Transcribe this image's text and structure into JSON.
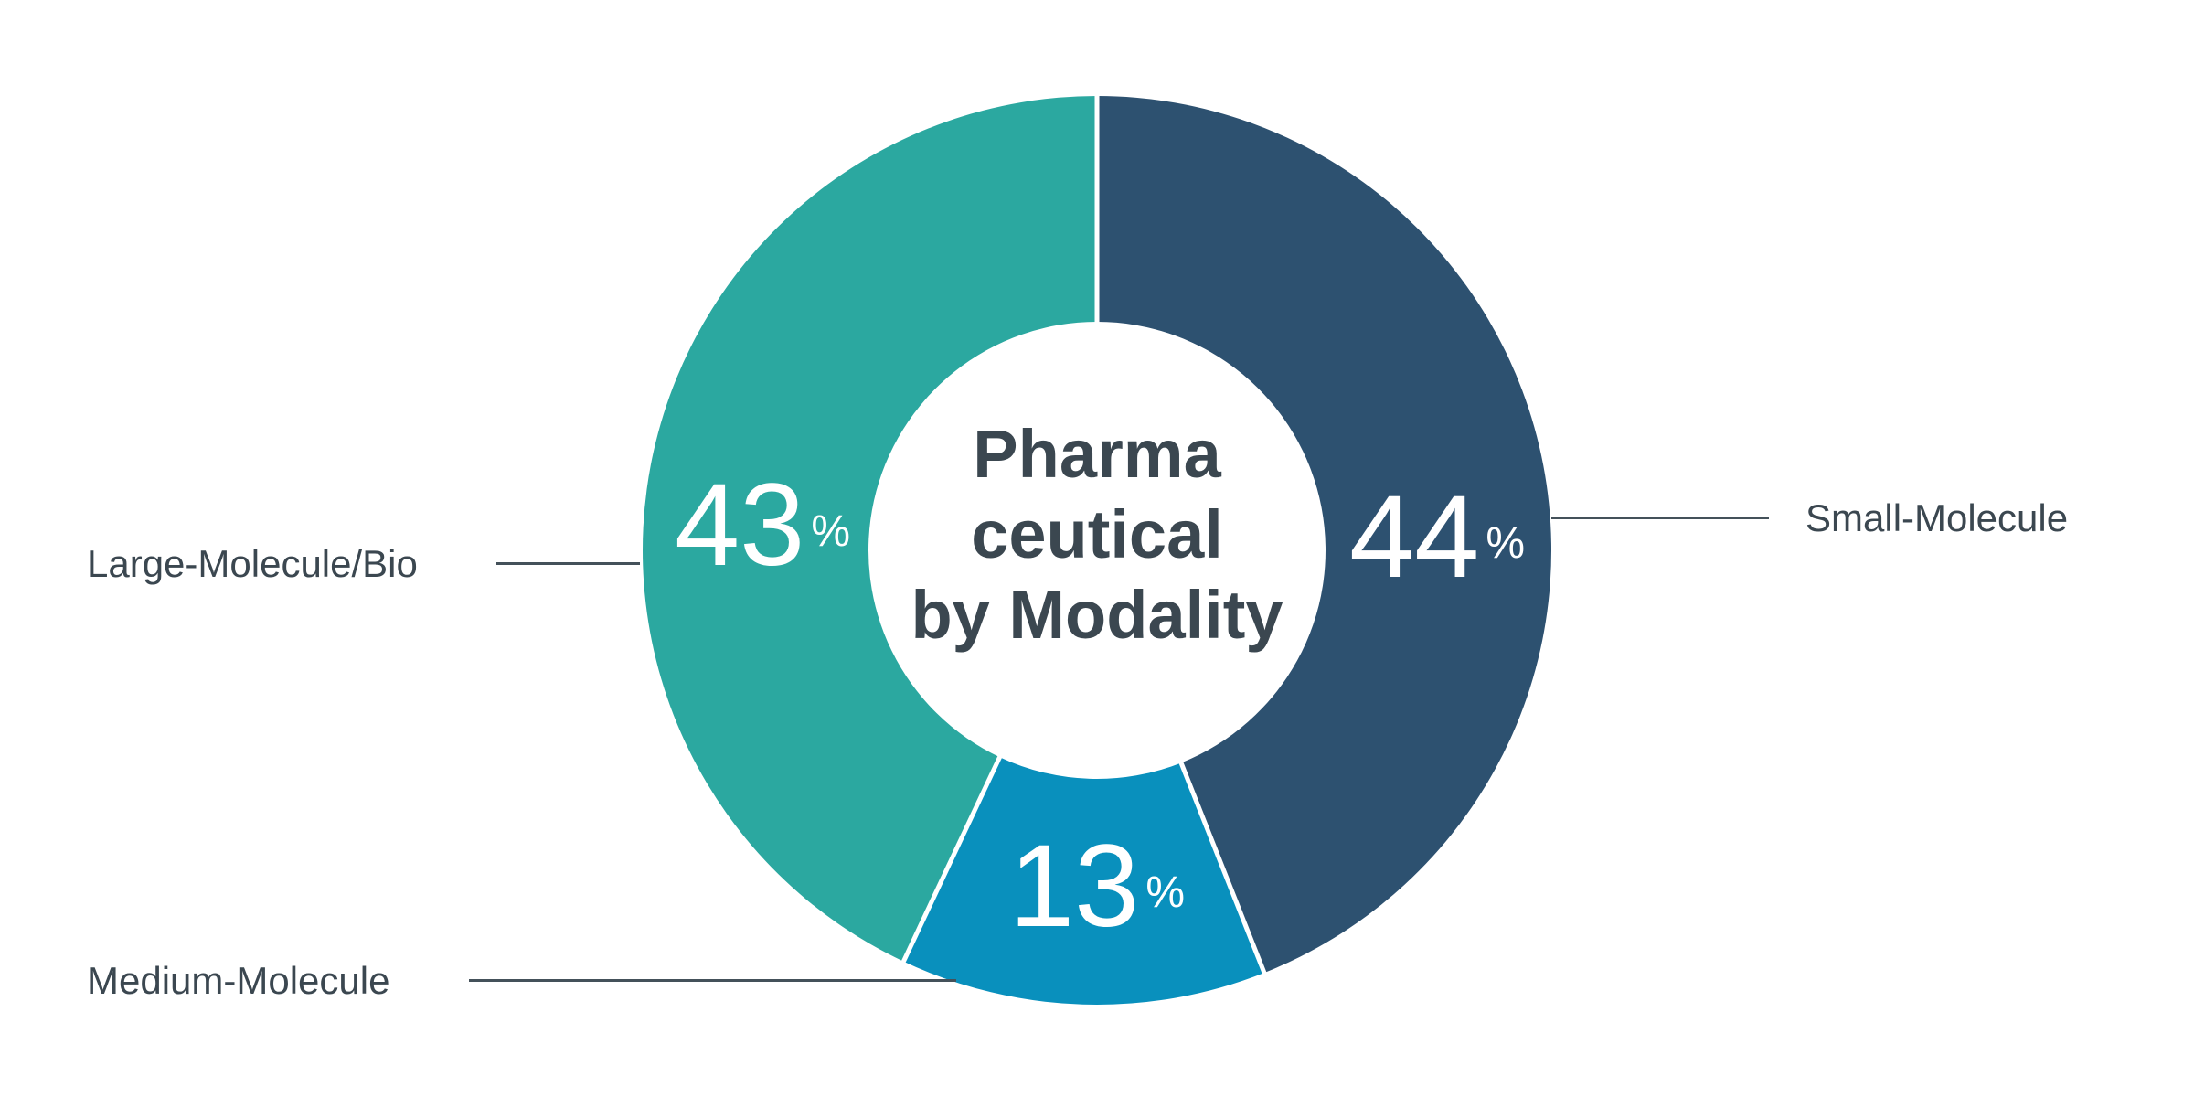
{
  "page": {
    "background_color": "#ffffff"
  },
  "chart_data": {
    "type": "pie",
    "variant": "donut",
    "title": "Pharmaceutical by Modality",
    "center_title_lines": [
      "Pharma",
      "ceutical",
      "by Modality"
    ],
    "start_angle_deg": 0,
    "direction": "clockwise",
    "legend_position": "callout-lines",
    "segments": [
      {
        "label": "Small-Molecule",
        "value": 44,
        "value_display": "44",
        "unit": "%",
        "color": "#2D5170",
        "callout_side": "right"
      },
      {
        "label": "Medium-Molecule",
        "value": 13,
        "value_display": "13",
        "unit": "%",
        "color": "#0990BD",
        "callout_side": "bottom-left"
      },
      {
        "label": "Large-Molecule/Bio",
        "value": 43,
        "value_display": "43",
        "unit": "%",
        "color": "#2BA8A0",
        "callout_side": "left"
      }
    ],
    "colors": {
      "divider": "#ffffff",
      "value_label_text": "#ffffff",
      "center_text": "#3B4750",
      "callout_text": "#3B4750",
      "callout_line": "#44515a"
    }
  }
}
